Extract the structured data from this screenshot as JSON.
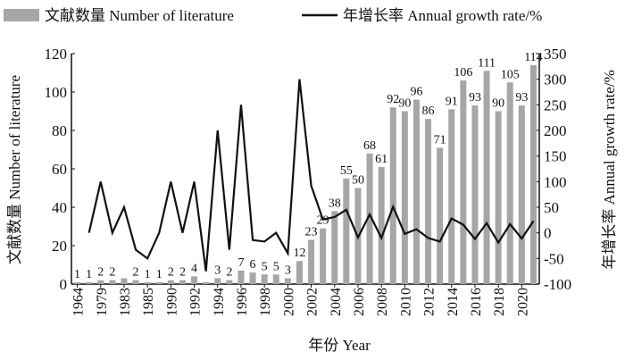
{
  "chart_data": {
    "type": "bar+line",
    "legend": {
      "bar_label": "文献数量 Number of literature",
      "line_label": "年增长率 Annual growth rate/%",
      "placement": "top"
    },
    "xlabel": "年份 Year",
    "ylabel_left": "文献数量 Number of literature",
    "ylabel_right": "年增长率 Annual growth rate/%",
    "ylim_left": [
      0,
      120
    ],
    "yticks_left": [
      "0",
      "20",
      "40",
      "60",
      "80",
      "100",
      "120"
    ],
    "ylim_right": [
      -100,
      350
    ],
    "yticks_right": [
      "-100",
      "-50",
      "0",
      "50",
      "100",
      "150",
      "200",
      "250",
      "300",
      "350"
    ],
    "x_tick_labels": [
      "1964",
      "1979",
      "1983",
      "1985",
      "1990",
      "1992",
      "1994",
      "1996",
      "1998",
      "2000",
      "2002",
      "2004",
      "2006",
      "2008",
      "2010",
      "2012",
      "2014",
      "2016",
      "2018",
      "2020"
    ],
    "bars": {
      "name": "Number of literature",
      "values": [
        1,
        1,
        2,
        2,
        3,
        2,
        1,
        1,
        2,
        2,
        4,
        1,
        3,
        2,
        7,
        6,
        5,
        5,
        3,
        12,
        23,
        29,
        38,
        55,
        50,
        68,
        61,
        92,
        90,
        96,
        86,
        71,
        91,
        106,
        93,
        111,
        90,
        105,
        93,
        114
      ],
      "shown_labels": [
        "1",
        "1",
        "2",
        "2",
        "",
        "2",
        "1",
        "1",
        "2",
        "2",
        "4",
        "",
        "3",
        "2",
        "7",
        "6",
        "5",
        "5",
        "3",
        "12",
        "23",
        "29",
        "38",
        "55",
        "50",
        "68",
        "61",
        "92",
        "90",
        "96",
        "86",
        "71",
        "91",
        "106",
        "93",
        "111",
        "90",
        "105",
        "93",
        "114"
      ]
    },
    "line": {
      "name": "Annual growth rate/%",
      "values": [
        null,
        0,
        100,
        0,
        50,
        -33,
        -50,
        0,
        100,
        0,
        100,
        -75,
        200,
        -33,
        250,
        -14,
        -17,
        0,
        -40,
        300,
        92,
        26,
        31,
        45,
        -9,
        36,
        -10,
        51,
        -2,
        7,
        -10,
        -17,
        28,
        16,
        -12,
        19,
        -19,
        17,
        -11,
        23
      ]
    },
    "colors": {
      "bar": "#a6a6a6",
      "line": "#111111"
    }
  }
}
